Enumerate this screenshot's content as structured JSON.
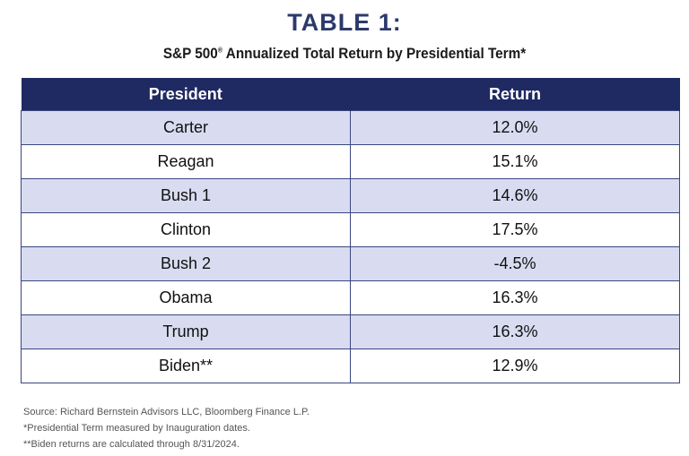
{
  "title": "TABLE 1:",
  "subtitle_main": "S&P 500",
  "subtitle_mark": "®",
  "subtitle_rest": " Annualized Total Return by Presidential Term*",
  "table": {
    "headers": [
      "President",
      "Return"
    ],
    "rows": [
      [
        "Carter",
        "12.0%"
      ],
      [
        "Reagan",
        "15.1%"
      ],
      [
        "Bush 1",
        "14.6%"
      ],
      [
        "Clinton",
        "17.5%"
      ],
      [
        "Bush 2",
        "-4.5%"
      ],
      [
        "Obama",
        "16.3%"
      ],
      [
        "Trump",
        "16.3%"
      ],
      [
        "Biden**",
        "12.9%"
      ]
    ]
  },
  "notes": [
    "Source: Richard Bernstein Advisors LLC, Bloomberg Finance L.P.",
    "*Presidential Term measured by Inauguration dates.",
    "**Biden returns are calculated through 8/31/2024."
  ],
  "colors": {
    "header_bg": "#1f2a63",
    "title": "#2b3a6b",
    "row_shade": "#d9dcf1"
  },
  "chart_data": {
    "type": "table",
    "title": "TABLE 1:",
    "subtitle": "S&P 500® Annualized Total Return by Presidential Term*",
    "columns": [
      "President",
      "Return"
    ],
    "categories": [
      "Carter",
      "Reagan",
      "Bush 1",
      "Clinton",
      "Bush 2",
      "Obama",
      "Trump",
      "Biden**"
    ],
    "values": [
      12.0,
      15.1,
      14.6,
      17.5,
      -4.5,
      16.3,
      16.3,
      12.9
    ],
    "unit": "%"
  }
}
